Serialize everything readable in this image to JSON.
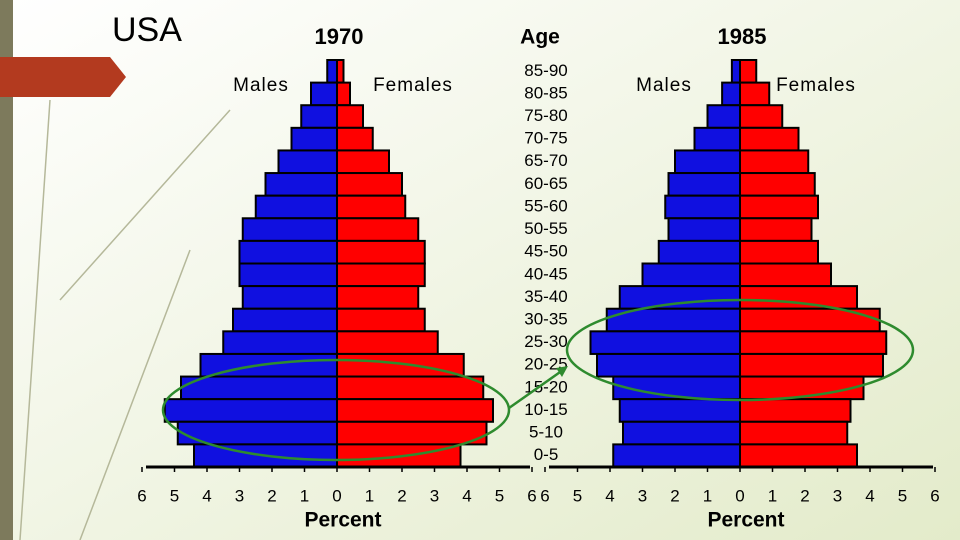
{
  "title": "USA",
  "age_label": "Age",
  "categories": [
    "85-90",
    "80-85",
    "75-80",
    "70-75",
    "65-70",
    "60-65",
    "55-60",
    "50-55",
    "45-50",
    "40-45",
    "35-40",
    "30-35",
    "25-30",
    "20-25",
    "15-20",
    "10-15",
    "5-10",
    "0-5"
  ],
  "chart_data": [
    {
      "type": "pyramid",
      "title": "1970",
      "xlabel": "Percent",
      "xlim": [
        -6,
        6
      ],
      "xticks": [
        {
          "value": -6,
          "label": "6"
        },
        {
          "value": -5,
          "label": "5"
        },
        {
          "value": -4,
          "label": "4"
        },
        {
          "value": -3,
          "label": "3"
        },
        {
          "value": -2,
          "label": "2"
        },
        {
          "value": -1,
          "label": "1"
        },
        0,
        1,
        2,
        3,
        4,
        5,
        6
      ],
      "series": [
        {
          "name": "Males",
          "color": "#1010e0",
          "side": "left",
          "values": [
            0.3,
            0.8,
            1.1,
            1.4,
            1.8,
            2.2,
            2.5,
            2.9,
            3.0,
            3.0,
            2.9,
            3.2,
            3.5,
            4.2,
            4.8,
            5.3,
            4.9,
            4.4
          ]
        },
        {
          "name": "Females",
          "color": "#ff0000",
          "side": "right",
          "values": [
            0.2,
            0.4,
            0.8,
            1.1,
            1.6,
            2.0,
            2.1,
            2.5,
            2.7,
            2.7,
            2.5,
            2.7,
            3.1,
            3.9,
            4.5,
            4.8,
            4.6,
            3.8
          ]
        }
      ]
    },
    {
      "type": "pyramid",
      "title": "1985",
      "xlabel": "Percent",
      "xlim": [
        -6,
        6
      ],
      "xticks": [
        {
          "value": -6,
          "label": "6"
        },
        {
          "value": -5,
          "label": "5"
        },
        {
          "value": -4,
          "label": "4"
        },
        {
          "value": -3,
          "label": "3"
        },
        {
          "value": -2,
          "label": "2"
        },
        {
          "value": -1,
          "label": "1"
        },
        0,
        1,
        2,
        3,
        4,
        5,
        6
      ],
      "series": [
        {
          "name": "Males",
          "color": "#1010e0",
          "side": "left",
          "values": [
            0.25,
            0.55,
            1.0,
            1.4,
            2.0,
            2.2,
            2.3,
            2.2,
            2.5,
            3.0,
            3.7,
            4.1,
            4.6,
            4.4,
            3.9,
            3.7,
            3.6,
            3.9
          ]
        },
        {
          "name": "Females",
          "color": "#ff0000",
          "side": "right",
          "values": [
            0.5,
            0.9,
            1.3,
            1.8,
            2.1,
            2.3,
            2.4,
            2.2,
            2.4,
            2.8,
            3.6,
            4.3,
            4.5,
            4.4,
            3.8,
            3.4,
            3.3,
            3.6
          ]
        }
      ]
    }
  ]
}
